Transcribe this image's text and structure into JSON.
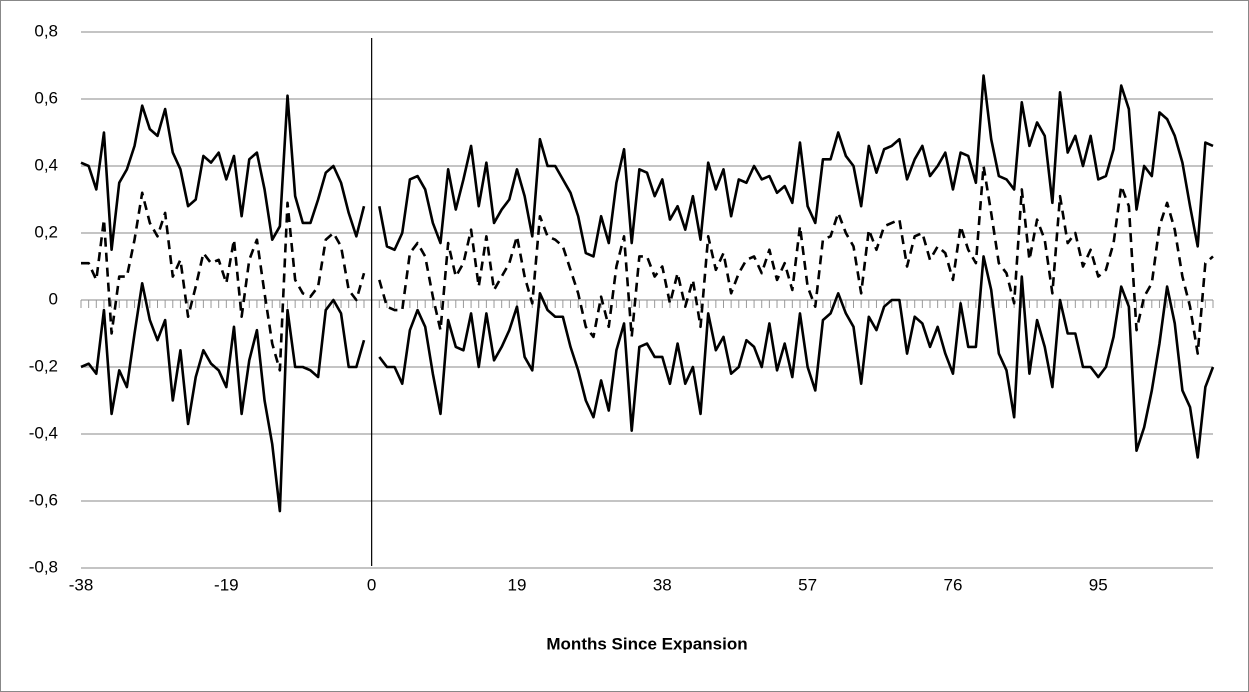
{
  "chart_data": {
    "type": "line",
    "x_label": "Months Since Expansion",
    "x": [
      -38,
      -37,
      -36,
      -35,
      -34,
      -33,
      -32,
      -31,
      -30,
      -29,
      -28,
      -27,
      -26,
      -25,
      -24,
      -23,
      -22,
      -21,
      -20,
      -19,
      -18,
      -17,
      -16,
      -15,
      -14,
      -13,
      -12,
      -11,
      -10,
      -9,
      -8,
      -7,
      -6,
      -5,
      -4,
      -3,
      -2,
      -1,
      0,
      1,
      2,
      3,
      4,
      5,
      6,
      7,
      8,
      9,
      10,
      11,
      12,
      13,
      14,
      15,
      16,
      17,
      18,
      19,
      20,
      21,
      22,
      23,
      24,
      25,
      26,
      27,
      28,
      29,
      30,
      31,
      32,
      33,
      34,
      35,
      36,
      37,
      38,
      39,
      40,
      41,
      42,
      43,
      44,
      45,
      46,
      47,
      48,
      49,
      50,
      51,
      52,
      53,
      54,
      55,
      56,
      57,
      58,
      59,
      60,
      61,
      62,
      63,
      64,
      65,
      66,
      67,
      68,
      69,
      70,
      71,
      72,
      73,
      74,
      75,
      76,
      77,
      78,
      79,
      80,
      81,
      82,
      83,
      84,
      85,
      86,
      87,
      88,
      89,
      90,
      91,
      92,
      93,
      94,
      95,
      96,
      97,
      98,
      99,
      100,
      101,
      102,
      103,
      104,
      105,
      106,
      107,
      108,
      109,
      110
    ],
    "series": [
      {
        "color": "#000000",
        "dash": false,
        "values": [
          0.41,
          0.4,
          0.33,
          0.5,
          0.15,
          0.35,
          0.39,
          0.46,
          0.58,
          0.51,
          0.49,
          0.57,
          0.44,
          0.39,
          0.28,
          0.3,
          0.43,
          0.41,
          0.44,
          0.36,
          0.43,
          0.25,
          0.42,
          0.44,
          0.33,
          0.18,
          0.22,
          0.61,
          0.31,
          0.23,
          0.23,
          0.3,
          0.38,
          0.4,
          0.35,
          0.26,
          0.19,
          0.28,
          null,
          0.28,
          0.16,
          0.15,
          0.2,
          0.36,
          0.37,
          0.33,
          0.23,
          0.17,
          0.39,
          0.27,
          0.36,
          0.46,
          0.28,
          0.41,
          0.23,
          0.27,
          0.3,
          0.39,
          0.31,
          0.19,
          0.48,
          0.4,
          0.4,
          0.36,
          0.32,
          0.25,
          0.14,
          0.13,
          0.25,
          0.17,
          0.35,
          0.45,
          0.17,
          0.39,
          0.38,
          0.31,
          0.36,
          0.24,
          0.28,
          0.21,
          0.31,
          0.18,
          0.41,
          0.33,
          0.39,
          0.25,
          0.36,
          0.35,
          0.4,
          0.36,
          0.37,
          0.32,
          0.34,
          0.29,
          0.47,
          0.28,
          0.23,
          0.42,
          0.42,
          0.5,
          0.43,
          0.4,
          0.28,
          0.46,
          0.38,
          0.45,
          0.46,
          0.48,
          0.36,
          0.42,
          0.46,
          0.37,
          0.4,
          0.44,
          0.33,
          0.44,
          0.43,
          0.35,
          0.67,
          0.48,
          0.37,
          0.36,
          0.33,
          0.59,
          0.46,
          0.53,
          0.49,
          0.29,
          0.62,
          0.44,
          0.49,
          0.4,
          0.49,
          0.36,
          0.37,
          0.45,
          0.64,
          0.57,
          0.27,
          0.4,
          0.37,
          0.56,
          0.54,
          0.49,
          0.41,
          0.28,
          0.16,
          0.47,
          0.46
        ]
      },
      {
        "color": "#000000",
        "dash": true,
        "values": [
          0.11,
          0.11,
          0.06,
          0.24,
          -0.1,
          0.07,
          0.07,
          0.18,
          0.32,
          0.23,
          0.19,
          0.26,
          0.07,
          0.12,
          -0.05,
          0.04,
          0.14,
          0.11,
          0.12,
          0.05,
          0.18,
          -0.05,
          0.12,
          0.18,
          0.02,
          -0.13,
          -0.21,
          0.29,
          0.06,
          0.02,
          0.01,
          0.04,
          0.18,
          0.2,
          0.16,
          0.03,
          0.0,
          0.08,
          null,
          0.06,
          -0.02,
          -0.03,
          -0.03,
          0.14,
          0.17,
          0.13,
          0.01,
          -0.09,
          0.17,
          0.07,
          0.11,
          0.21,
          0.04,
          0.19,
          0.03,
          0.07,
          0.11,
          0.19,
          0.07,
          -0.01,
          0.25,
          0.19,
          0.18,
          0.16,
          0.09,
          0.02,
          -0.08,
          -0.11,
          0.01,
          -0.08,
          0.1,
          0.19,
          -0.11,
          0.13,
          0.13,
          0.07,
          0.1,
          -0.01,
          0.08,
          -0.02,
          0.06,
          -0.08,
          0.19,
          0.09,
          0.14,
          0.02,
          0.08,
          0.12,
          0.13,
          0.08,
          0.15,
          0.06,
          0.11,
          0.03,
          0.22,
          0.04,
          -0.02,
          0.18,
          0.19,
          0.26,
          0.2,
          0.16,
          0.02,
          0.21,
          0.15,
          0.22,
          0.23,
          0.24,
          0.1,
          0.19,
          0.2,
          0.12,
          0.16,
          0.14,
          0.06,
          0.22,
          0.15,
          0.11,
          0.4,
          0.26,
          0.11,
          0.08,
          -0.01,
          0.33,
          0.12,
          0.24,
          0.18,
          0.02,
          0.31,
          0.17,
          0.2,
          0.1,
          0.15,
          0.07,
          0.09,
          0.17,
          0.34,
          0.28,
          -0.09,
          0.01,
          0.05,
          0.22,
          0.29,
          0.21,
          0.07,
          -0.02,
          -0.16,
          0.11,
          0.13
        ]
      },
      {
        "color": "#000000",
        "dash": false,
        "values": [
          -0.2,
          -0.19,
          -0.22,
          -0.03,
          -0.34,
          -0.21,
          -0.26,
          -0.1,
          0.05,
          -0.06,
          -0.12,
          -0.06,
          -0.3,
          -0.15,
          -0.37,
          -0.23,
          -0.15,
          -0.19,
          -0.21,
          -0.26,
          -0.08,
          -0.34,
          -0.18,
          -0.09,
          -0.3,
          -0.43,
          -0.63,
          -0.03,
          -0.2,
          -0.2,
          -0.21,
          -0.23,
          -0.03,
          0.0,
          -0.04,
          -0.2,
          -0.2,
          -0.12,
          null,
          -0.17,
          -0.2,
          -0.2,
          -0.25,
          -0.09,
          -0.03,
          -0.08,
          -0.22,
          -0.34,
          -0.06,
          -0.14,
          -0.15,
          -0.04,
          -0.2,
          -0.04,
          -0.18,
          -0.14,
          -0.09,
          -0.02,
          -0.17,
          -0.21,
          0.02,
          -0.03,
          -0.05,
          -0.05,
          -0.14,
          -0.21,
          -0.3,
          -0.35,
          -0.24,
          -0.33,
          -0.15,
          -0.07,
          -0.39,
          -0.14,
          -0.13,
          -0.17,
          -0.17,
          -0.25,
          -0.13,
          -0.25,
          -0.2,
          -0.34,
          -0.04,
          -0.15,
          -0.11,
          -0.22,
          -0.2,
          -0.12,
          -0.14,
          -0.2,
          -0.07,
          -0.21,
          -0.13,
          -0.23,
          -0.04,
          -0.2,
          -0.27,
          -0.06,
          -0.04,
          0.02,
          -0.04,
          -0.08,
          -0.25,
          -0.05,
          -0.09,
          -0.02,
          0.0,
          0.0,
          -0.16,
          -0.05,
          -0.07,
          -0.14,
          -0.08,
          -0.16,
          -0.22,
          -0.01,
          -0.14,
          -0.14,
          0.13,
          0.03,
          -0.16,
          -0.21,
          -0.35,
          0.07,
          -0.22,
          -0.06,
          -0.14,
          -0.26,
          0.0,
          -0.1,
          -0.1,
          -0.2,
          -0.2,
          -0.23,
          -0.2,
          -0.11,
          0.04,
          -0.02,
          -0.45,
          -0.38,
          -0.27,
          -0.13,
          0.04,
          -0.07,
          -0.27,
          -0.32,
          -0.47,
          -0.26,
          -0.2
        ]
      }
    ],
    "xlim": [
      -38,
      110
    ],
    "xticks": [
      -38,
      -19,
      0,
      19,
      38,
      57,
      76,
      95
    ],
    "ylim": [
      -0.8,
      0.8
    ],
    "yticks": [
      {
        "value": -0.8,
        "label": "-0,8"
      },
      {
        "value": -0.6,
        "label": "-0,6"
      },
      {
        "value": -0.4,
        "label": "-0,4"
      },
      {
        "value": -0.2,
        "label": "-0,2"
      },
      0,
      {
        "value": 0.2,
        "label": "0,2"
      },
      {
        "value": 0.4,
        "label": "0,4"
      },
      {
        "value": 0.6,
        "label": "0,6"
      },
      {
        "value": 0.8,
        "label": "0,8"
      }
    ],
    "grid": true
  }
}
